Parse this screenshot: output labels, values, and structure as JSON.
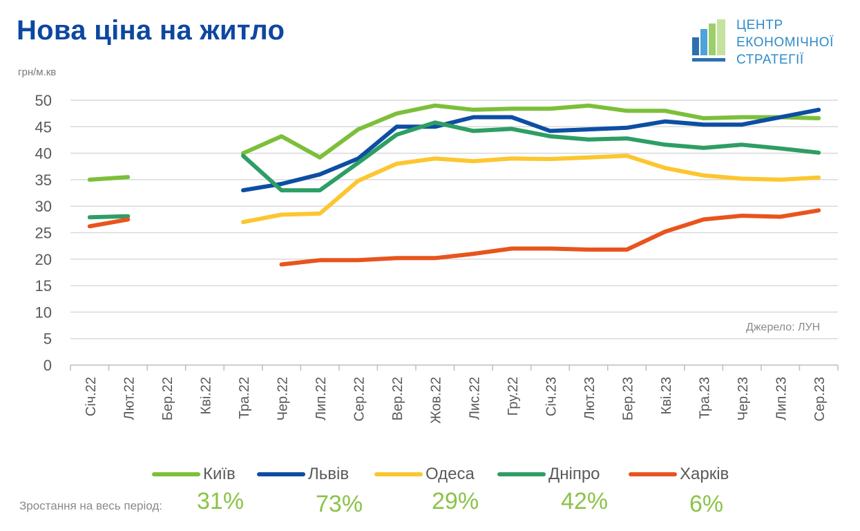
{
  "title": "Нова ціна на житло",
  "unit": "грн/м.кв",
  "logo": {
    "line1": "ЦЕНТР",
    "line2": "ЕКОНОМІЧНОЇ",
    "line3": "СТРАТЕГІЇ"
  },
  "source": "Джерело: ЛУН",
  "growth_label": "Зростання на весь період:",
  "growth": [
    "31%",
    "73%",
    "29%",
    "42%",
    "6%"
  ],
  "chart_data": {
    "type": "line",
    "title": "Нова ціна на житло",
    "ylabel": "грн/м.кв",
    "xlabel": "",
    "ylim": [
      0,
      50
    ],
    "yticks": [
      0,
      5,
      10,
      15,
      20,
      25,
      30,
      35,
      40,
      45,
      50
    ],
    "categories": [
      "Січ.22",
      "Лют.22",
      "Бер.22",
      "Кві.22",
      "Тра.22",
      "Чер.22",
      "Лип.22",
      "Сер.22",
      "Вер.22",
      "Жов.22",
      "Лис.22",
      "Гру.22",
      "Січ.23",
      "Лют.23",
      "Бер.23",
      "Кві.23",
      "Тра.23",
      "Чер.23",
      "Лип.23",
      "Сер.23"
    ],
    "series": [
      {
        "name": "Київ",
        "color": "#7cbf3a",
        "values": [
          35,
          35.5,
          null,
          null,
          40,
          43.2,
          39.2,
          44.5,
          47.5,
          49,
          48.2,
          48.4,
          48.4,
          49,
          48,
          48,
          46.6,
          46.8,
          46.8,
          46.6
        ]
      },
      {
        "name": "Львів",
        "color": "#0d4ea3",
        "values": [
          null,
          null,
          null,
          null,
          33,
          34.2,
          36,
          39,
          45,
          45,
          46.8,
          46.8,
          44.2,
          44.5,
          44.8,
          46,
          45.4,
          45.4,
          46.8,
          48.2
        ]
      },
      {
        "name": "Одеса",
        "color": "#fcc630",
        "values": [
          null,
          null,
          null,
          null,
          27,
          28.4,
          28.6,
          34.8,
          38,
          39,
          38.5,
          39,
          38.9,
          39.2,
          39.5,
          37.2,
          35.8,
          35.2,
          35,
          35.4
        ]
      },
      {
        "name": "Дніпро",
        "color": "#2e9e64",
        "values": [
          27.9,
          28.1,
          null,
          null,
          39.5,
          33,
          33,
          38.2,
          43.5,
          45.8,
          44.2,
          44.6,
          43.2,
          42.6,
          42.8,
          41.6,
          41,
          41.6,
          40.9,
          40.1
        ]
      },
      {
        "name": "Харків",
        "color": "#e8541d",
        "values": [
          26.2,
          27.5,
          null,
          null,
          null,
          19,
          19.8,
          19.8,
          20.2,
          20.2,
          21,
          22,
          22,
          21.8,
          21.8,
          25.2,
          27.5,
          28.2,
          28,
          29.2
        ]
      }
    ],
    "legend_position": "bottom"
  }
}
